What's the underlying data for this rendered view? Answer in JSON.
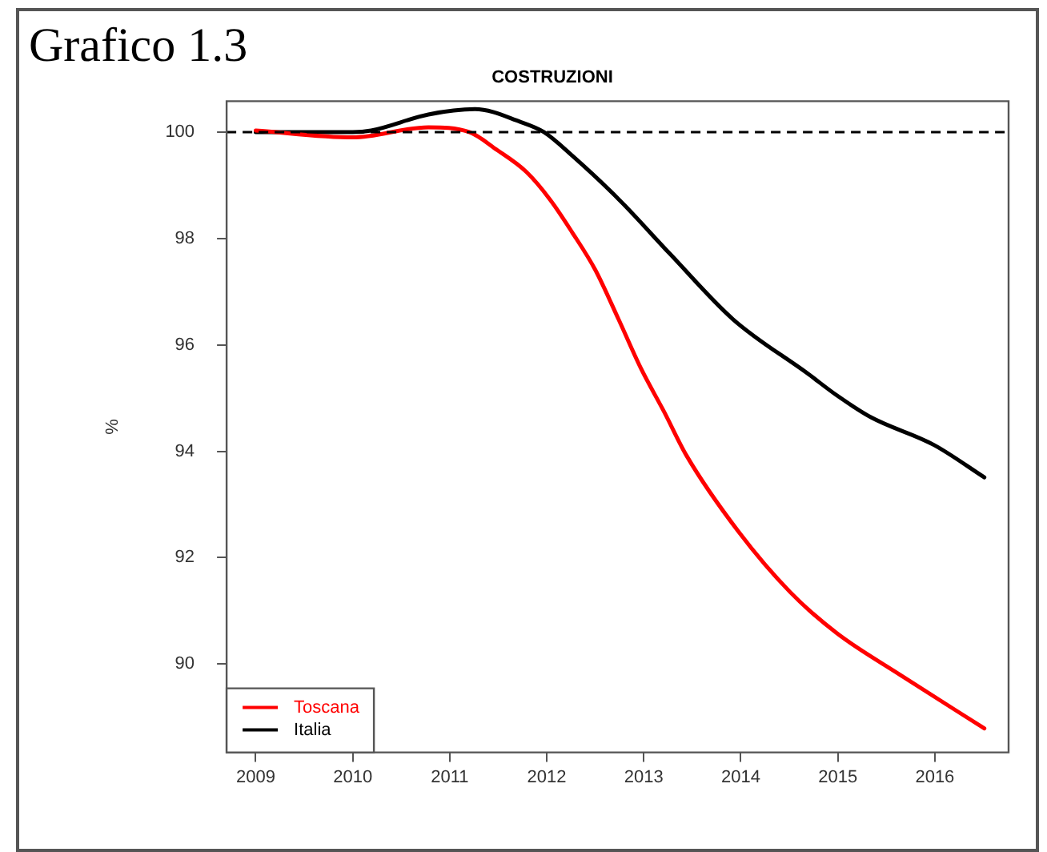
{
  "chart_data": {
    "type": "line",
    "title": "COSTRUZIONI",
    "ylabel": "%",
    "annotations": [
      "Grafico 1.3"
    ],
    "xlim": [
      2008.7,
      2016.76
    ],
    "xticks": [
      2009,
      2010,
      2011,
      2012,
      2013,
      2014,
      2015,
      2016
    ],
    "ylim": [
      88.34,
      100.58
    ],
    "yticks": [
      90,
      92,
      94,
      96,
      98,
      100
    ],
    "grid": false,
    "legend": "bottom left",
    "line_style": "solid",
    "marker": "none",
    "ref_lines": [
      {
        "axis": "y",
        "value": 100,
        "color": "#000000",
        "line_style": "dashed"
      }
    ],
    "series": [
      {
        "name": "Toscana",
        "color": "#ff0000",
        "x": [
          2009,
          2010,
          2010.78,
          2011.2,
          2011.49,
          2011.79,
          2012.03,
          2012.26,
          2012.5,
          2012.74,
          2012.97,
          2013.21,
          2013.44,
          2013.98,
          2014.51,
          2014.99,
          2015.64,
          2016.51
        ],
        "values": [
          100.03,
          99.9,
          100.09,
          100,
          99.66,
          99.25,
          98.74,
          98.12,
          97.41,
          96.48,
          95.56,
          94.74,
          93.92,
          92.48,
          91.35,
          90.58,
          89.8,
          88.79
        ]
      },
      {
        "name": "Italia",
        "color": "#000000",
        "x": [
          2009,
          2010,
          2010.19,
          2010.78,
          2011.26,
          2011.73,
          2011.97,
          2012.26,
          2012.74,
          2013.27,
          2013.92,
          2014.69,
          2014.99,
          2015.34,
          2015.99,
          2016.51
        ],
        "values": [
          100,
          100,
          100.03,
          100.33,
          100.43,
          100.19,
          100,
          99.56,
          98.74,
          97.71,
          96.48,
          95.46,
          95.05,
          94.64,
          94.12,
          93.51
        ]
      }
    ]
  }
}
